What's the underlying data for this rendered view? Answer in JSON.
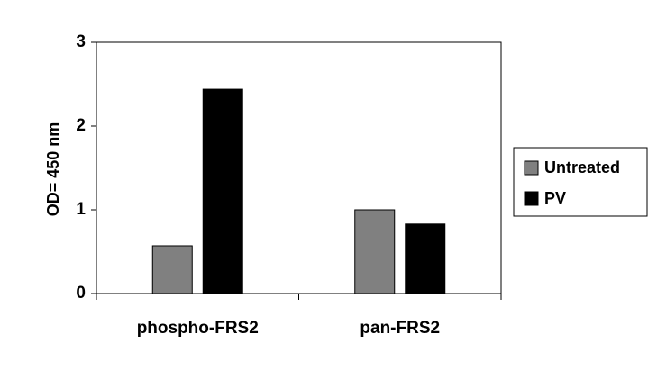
{
  "chart_data": {
    "type": "bar",
    "title": "",
    "xlabel": "",
    "ylabel": "OD= 450 nm",
    "categories": [
      "phospho-FRS2",
      "pan-FRS2"
    ],
    "series": [
      {
        "name": "Untreated",
        "values": [
          0.57,
          1.0
        ],
        "color": "#808080"
      },
      {
        "name": "PV",
        "values": [
          2.44,
          0.83
        ],
        "color": "#000000"
      }
    ],
    "ylim": [
      0,
      3
    ],
    "yticks": [
      "0",
      "1",
      "2",
      "3"
    ],
    "grid": false,
    "legend_position": "right"
  }
}
